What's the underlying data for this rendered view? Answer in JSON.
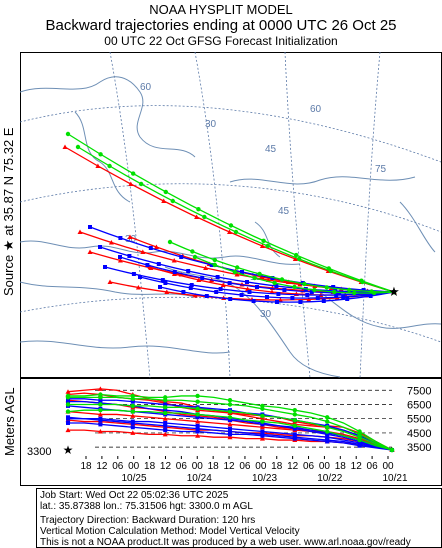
{
  "header": {
    "line1": "NOAA HYSPLIT MODEL",
    "line2": "Backward trajectories ending at 0000 UTC 26 Oct 25",
    "line3": "00 UTC 22 Oct    GFSG  Forecast Initialization"
  },
  "side_label": "Source ★ at   35.87 N   75.32 E",
  "height_axis_label": "Meters AGL",
  "map": {
    "grid_labels": [
      "60",
      "60",
      "45",
      "30",
      "45",
      "75",
      "30",
      "15",
      "30"
    ],
    "source_marker": "star"
  },
  "info": {
    "job_start": "Job Start: Wed Oct 22 05:02:36 UTC 2025",
    "location": "lat.: 35.87388   lon.: 75.31506   hgt: 3300.0 m AGL",
    "direction": "Trajectory Direction: Backward         Duration: 120 hrs",
    "vertical": "Vertical Motion Calculation Method: Model Vertical Velocity",
    "disclaimer": "This is not a NOAA product.It was produced by a web user. www.arl.noaa.gov/ready"
  },
  "colors": {
    "red": "#ff0000",
    "blue": "#0000ff",
    "green": "#00e000",
    "map": "#6e8fb5",
    "grid": "#5c7aa8"
  },
  "chart_data": {
    "type": "line",
    "title": "Backward trajectories ending at 0000 UTC 26 Oct 25",
    "ylabel": "Meters AGL",
    "ylim": [
      3300,
      7800
    ],
    "y_ticks": [
      "7500",
      "6500",
      "5500",
      "4500",
      "3500"
    ],
    "y_tick_values": [
      7500,
      6500,
      5500,
      4500,
      3500
    ],
    "start_height_label": "3300",
    "start_height": 3300,
    "x_hour_labels": [
      "18",
      "12",
      "06",
      "00",
      "18",
      "12",
      "06",
      "00",
      "18",
      "12",
      "06",
      "00",
      "18",
      "12",
      "06",
      "00",
      "18",
      "12",
      "06",
      "00"
    ],
    "x_date_labels": [
      "10/25",
      "10/24",
      "10/23",
      "10/22",
      "10/21"
    ],
    "x": [
      0,
      6,
      12,
      18,
      24,
      30,
      36,
      42,
      48,
      54,
      60,
      66,
      72,
      78,
      84,
      90,
      96,
      102,
      108,
      114,
      120
    ],
    "series": [
      {
        "color": "red",
        "heights": [
          3300,
          3900,
          4500,
          4900,
          5000,
          5100,
          5300,
          5600,
          5700,
          5800,
          5900,
          6100,
          6300,
          6600,
          6700,
          6900,
          7200,
          7500,
          7600,
          7500,
          7400
        ]
      },
      {
        "color": "red",
        "heights": [
          3300,
          3800,
          4300,
          4700,
          4900,
          5000,
          5100,
          5300,
          5500,
          5700,
          5900,
          6000,
          6100,
          6300,
          6600,
          6800,
          6900,
          7000,
          7200,
          7300,
          7200
        ]
      },
      {
        "color": "red",
        "heights": [
          3300,
          3700,
          4100,
          4400,
          4600,
          4700,
          4800,
          4900,
          5100,
          5200,
          5400,
          5600,
          5700,
          5800,
          6000,
          6200,
          6300,
          6500,
          6600,
          6700,
          6800
        ]
      },
      {
        "color": "red",
        "heights": [
          3300,
          3600,
          3900,
          4100,
          4200,
          4300,
          4300,
          4400,
          4500,
          4500,
          4600,
          4700,
          4700,
          4800,
          4900,
          5000,
          5100,
          5200,
          5300,
          5300,
          5400
        ]
      },
      {
        "color": "red",
        "heights": [
          3300,
          3500,
          3700,
          3800,
          3900,
          3900,
          4000,
          4000,
          4100,
          4100,
          4200,
          4200,
          4300,
          4300,
          4400,
          4400,
          4500,
          4600,
          4600,
          4700,
          4700
        ]
      },
      {
        "color": "red",
        "heights": [
          3300,
          3650,
          4000,
          4300,
          4500,
          4600,
          4700,
          4800,
          4900,
          5000,
          5100,
          5200,
          5300,
          5400,
          5500,
          5600,
          5700,
          5800,
          5800,
          5900,
          6000
        ]
      },
      {
        "color": "blue",
        "heights": [
          3300,
          3800,
          4300,
          4700,
          5000,
          5200,
          5400,
          5600,
          5800,
          5900,
          6100,
          6200,
          6300,
          6400,
          6500,
          6600,
          6700,
          6800,
          6800,
          6900,
          6900
        ]
      },
      {
        "color": "blue",
        "heights": [
          3300,
          3600,
          4000,
          4300,
          4500,
          4700,
          4900,
          5000,
          5100,
          5300,
          5400,
          5500,
          5600,
          5700,
          5800,
          5900,
          6000,
          6100,
          6200,
          6300,
          6400
        ]
      },
      {
        "color": "blue",
        "heights": [
          3300,
          3550,
          3800,
          4000,
          4200,
          4300,
          4400,
          4500,
          4600,
          4700,
          4800,
          4900,
          5000,
          5100,
          5200,
          5300,
          5300,
          5400,
          5500,
          5500,
          5600
        ]
      },
      {
        "color": "blue",
        "heights": [
          3300,
          3500,
          3700,
          3900,
          4000,
          4100,
          4200,
          4300,
          4400,
          4500,
          4600,
          4700,
          4800,
          4900,
          5000,
          5100,
          5200,
          5300,
          5400,
          5500,
          5500
        ]
      },
      {
        "color": "blue",
        "heights": [
          3300,
          3450,
          3600,
          3800,
          3900,
          4000,
          4100,
          4200,
          4300,
          4400,
          4400,
          4500,
          4600,
          4600,
          4700,
          4800,
          4900,
          5000,
          5100,
          5200,
          5200
        ]
      },
      {
        "color": "blue",
        "heights": [
          3300,
          3600,
          3900,
          4200,
          4400,
          4600,
          4800,
          5000,
          5200,
          5400,
          5500,
          5700,
          5800,
          6000,
          6100,
          6200,
          6400,
          6500,
          6600,
          6700,
          6700
        ]
      },
      {
        "color": "green",
        "heights": [
          3300,
          3900,
          4600,
          5200,
          5600,
          5900,
          6100,
          6300,
          6400,
          6600,
          6800,
          7000,
          7100,
          7100,
          7000,
          7000,
          7100,
          7100,
          7200,
          7100,
          7100
        ]
      },
      {
        "color": "green",
        "heights": [
          3300,
          3800,
          4400,
          4900,
          5300,
          5600,
          5800,
          6000,
          6200,
          6400,
          6500,
          6600,
          6700,
          6800,
          6800,
          6900,
          6900,
          7000,
          7000,
          7000,
          7000
        ]
      },
      {
        "color": "green",
        "heights": [
          3300,
          3700,
          4200,
          4600,
          4900,
          5200,
          5400,
          5600,
          5700,
          5900,
          6000,
          6100,
          6200,
          6300,
          6300,
          6400,
          6400,
          6500,
          6500,
          6500,
          6500
        ]
      },
      {
        "color": "green",
        "heights": [
          3300,
          3600,
          4000,
          4300,
          4600,
          4800,
          5000,
          5200,
          5300,
          5400,
          5600,
          5700,
          5800,
          5900,
          5900,
          6000,
          6000,
          6100,
          6100,
          6100,
          6000
        ]
      }
    ]
  }
}
